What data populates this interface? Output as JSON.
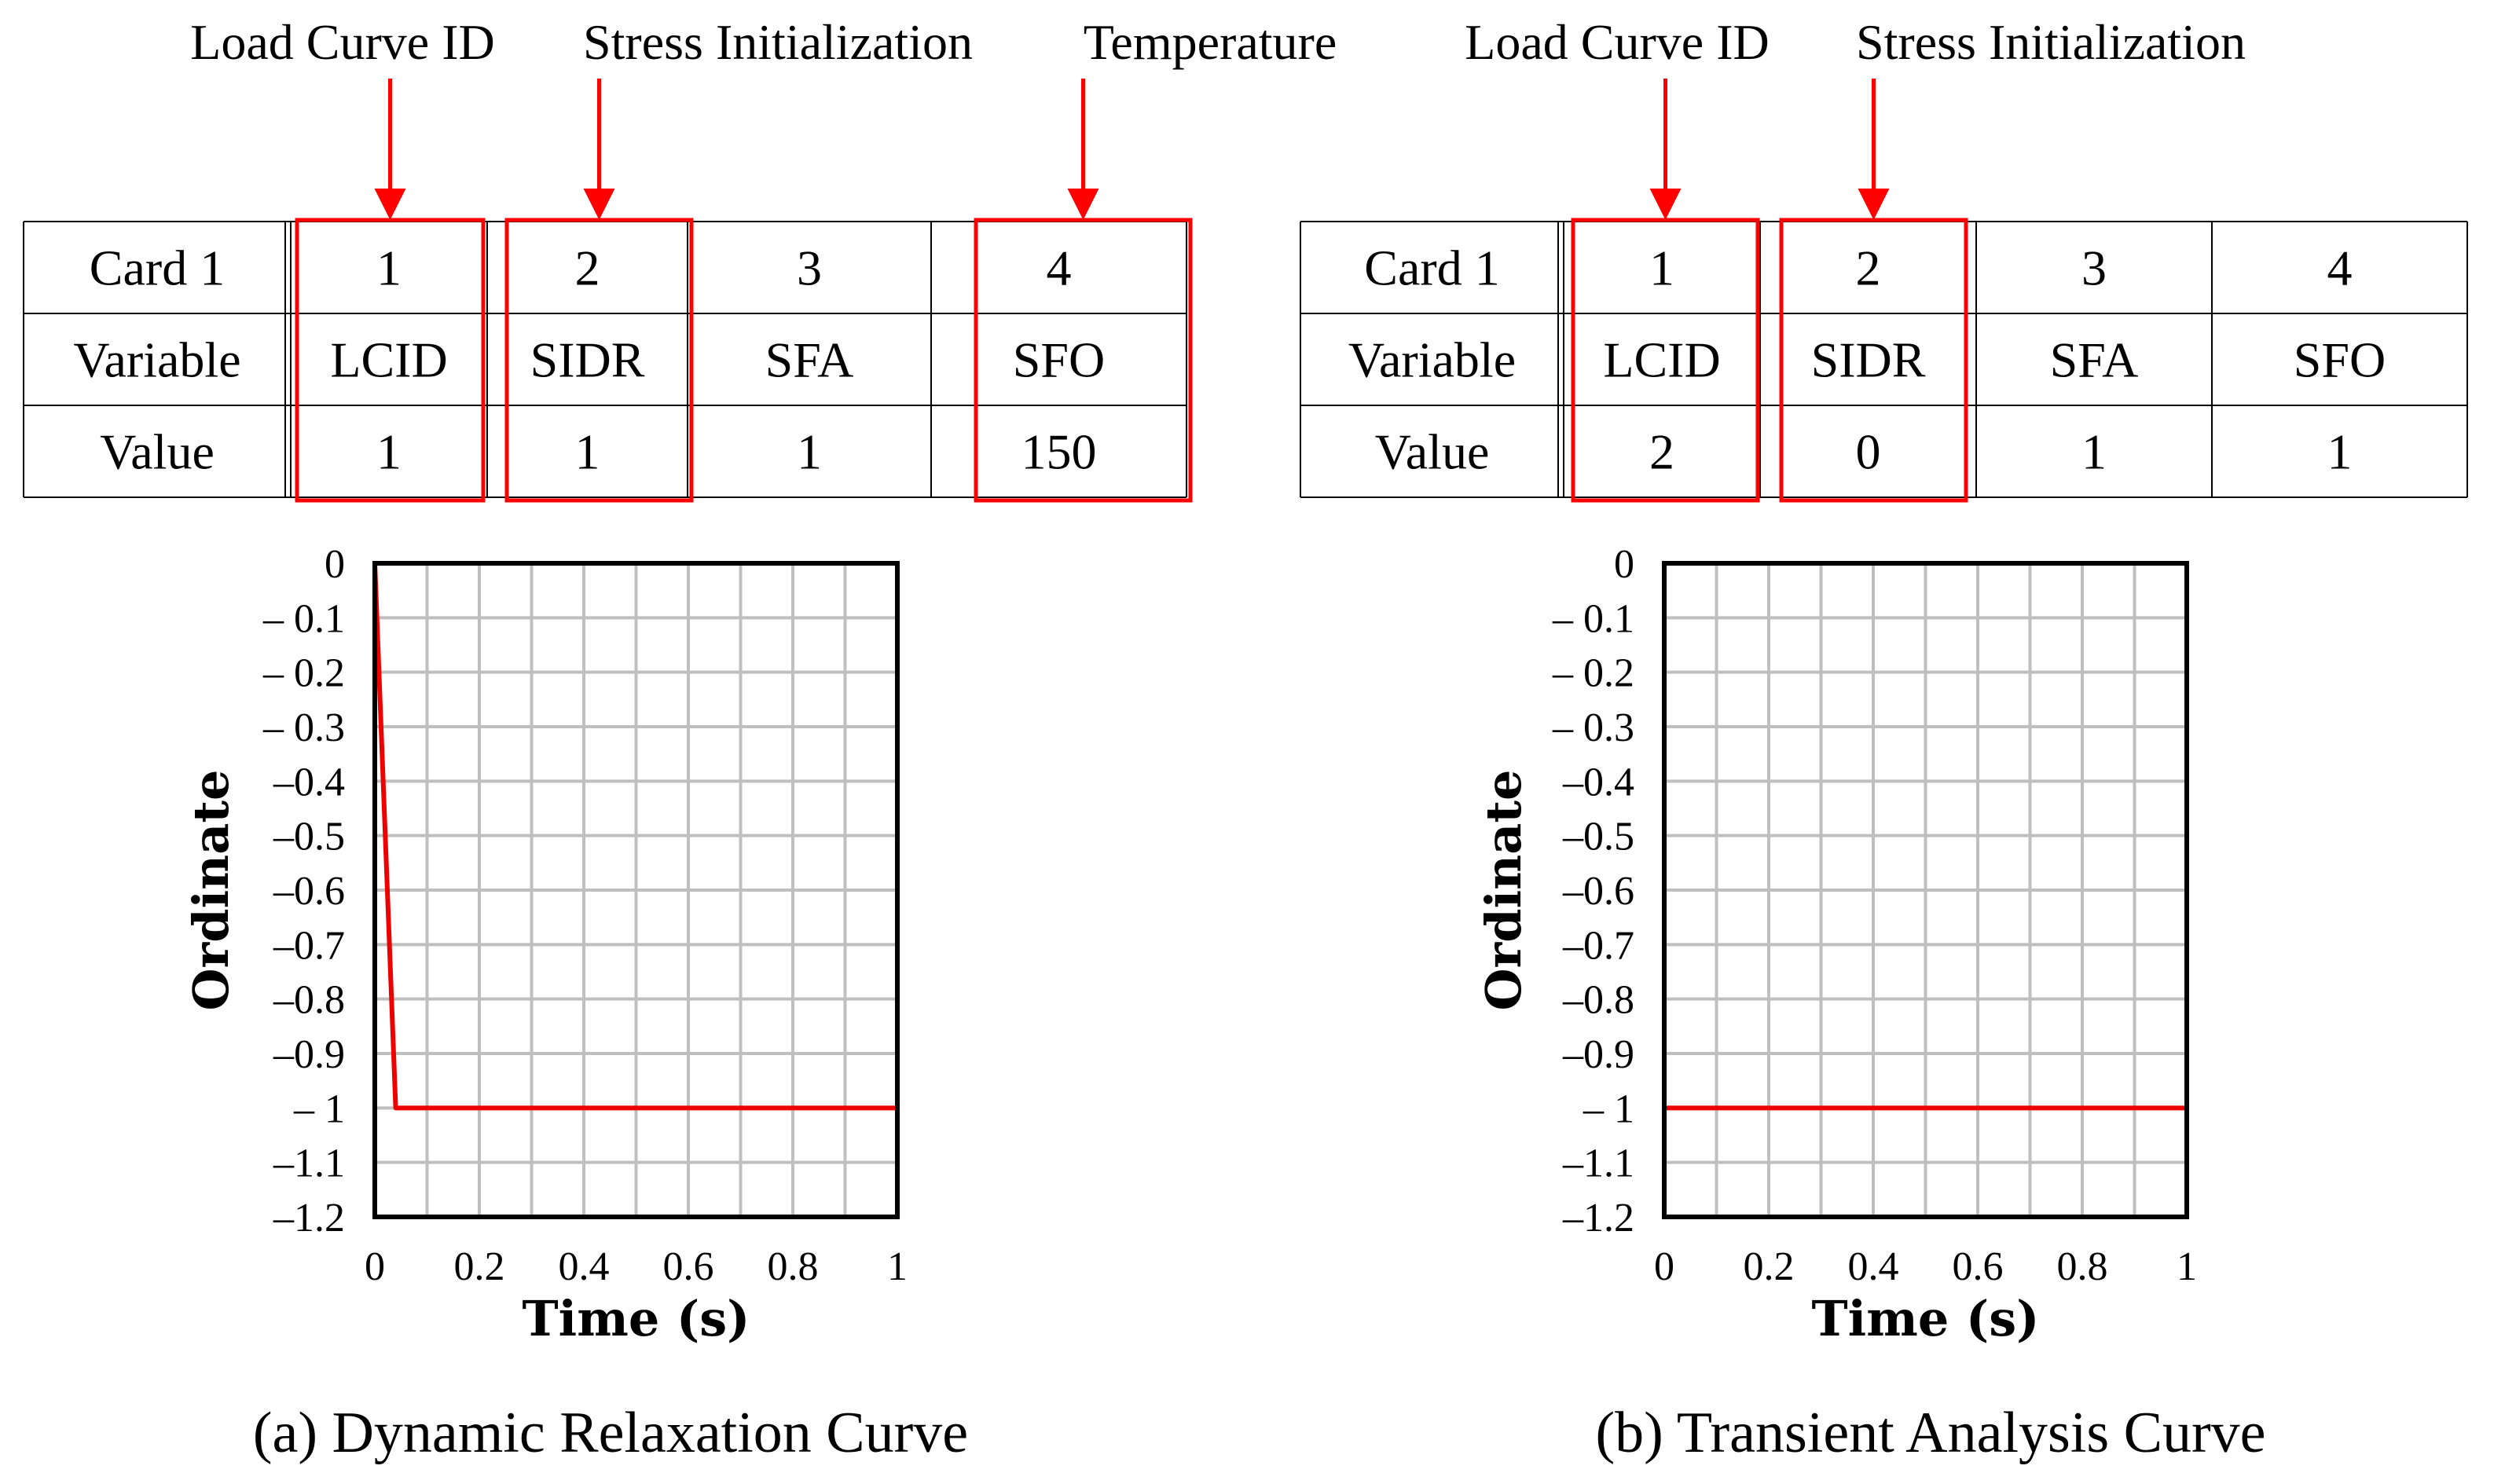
{
  "colors": {
    "highlight": "#ff0000",
    "curve": "#ee0000",
    "grid": "#bfbfbf",
    "border": "#000000",
    "text": "#000000"
  },
  "panels": [
    {
      "id": "a",
      "caption": "(a)  Dynamic Relaxation Curve",
      "callouts": [
        {
          "text": "Load Curve ID",
          "column": 1
        },
        {
          "text": "Stress Initialization",
          "column": 2
        },
        {
          "text": "Temperature",
          "column": 4
        }
      ],
      "highlighted_columns": [
        1,
        2,
        4
      ],
      "table": {
        "rows": [
          [
            "Card 1",
            "1",
            "2",
            "3",
            "4"
          ],
          [
            "Variable",
            "LCID",
            "SIDR",
            "SFA",
            "SFO"
          ],
          [
            "Value",
            "1",
            "1",
            "1",
            "150"
          ]
        ]
      }
    },
    {
      "id": "b",
      "caption": "(b)  Transient Analysis Curve",
      "callouts": [
        {
          "text": "Load Curve ID",
          "column": 1
        },
        {
          "text": "Stress Initialization",
          "column": 2
        }
      ],
      "highlighted_columns": [
        1,
        2
      ],
      "table": {
        "rows": [
          [
            "Card 1",
            "1",
            "2",
            "3",
            "4"
          ],
          [
            "Variable",
            "LCID",
            "SIDR",
            "SFA",
            "SFO"
          ],
          [
            "Value",
            "2",
            "0",
            "1",
            "1"
          ]
        ]
      }
    }
  ],
  "chart_data": [
    {
      "type": "line",
      "title": "",
      "xlabel": "Time (s)",
      "ylabel": "Ordinate",
      "xlim": [
        0,
        1
      ],
      "ylim": [
        -1.2,
        0
      ],
      "xticks": [
        0,
        0.2,
        0.4,
        0.6,
        0.8,
        1
      ],
      "xtick_labels": [
        "0",
        "0.2",
        "0.4",
        "0.6",
        "0.8",
        "1"
      ],
      "yticks": [
        0,
        -0.1,
        -0.2,
        -0.3,
        -0.4,
        -0.5,
        -0.6,
        -0.7,
        -0.8,
        -0.9,
        -1,
        -1.1,
        -1.2
      ],
      "ytick_labels": [
        "0",
        "– 0.1",
        "– 0.2",
        "– 0.3",
        "–0.4",
        "–0.5",
        "–0.6",
        "–0.7",
        "–0.8",
        "–0.9",
        "–  1",
        "–1.1",
        "–1.2"
      ],
      "grid_step_x": 0.1,
      "grid": true,
      "series": [
        {
          "name": "Dynamic Relaxation",
          "x": [
            0,
            0.04,
            1
          ],
          "y": [
            0,
            -1,
            -1
          ]
        }
      ]
    },
    {
      "type": "line",
      "title": "",
      "xlabel": "Time (s)",
      "ylabel": "Ordinate",
      "xlim": [
        0,
        1
      ],
      "ylim": [
        -1.2,
        0
      ],
      "xticks": [
        0,
        0.2,
        0.4,
        0.6,
        0.8,
        1
      ],
      "xtick_labels": [
        "0",
        "0.2",
        "0.4",
        "0.6",
        "0.8",
        "1"
      ],
      "yticks": [
        0,
        -0.1,
        -0.2,
        -0.3,
        -0.4,
        -0.5,
        -0.6,
        -0.7,
        -0.8,
        -0.9,
        -1,
        -1.1,
        -1.2
      ],
      "ytick_labels": [
        "0",
        "– 0.1",
        "– 0.2",
        "– 0.3",
        "–0.4",
        "–0.5",
        "–0.6",
        "–0.7",
        "–0.8",
        "–0.9",
        "–  1",
        "–1.1",
        "–1.2"
      ],
      "grid_step_x": 0.1,
      "grid": true,
      "series": [
        {
          "name": "Transient Analysis",
          "x": [
            0,
            1
          ],
          "y": [
            -1,
            -1
          ]
        }
      ]
    }
  ]
}
